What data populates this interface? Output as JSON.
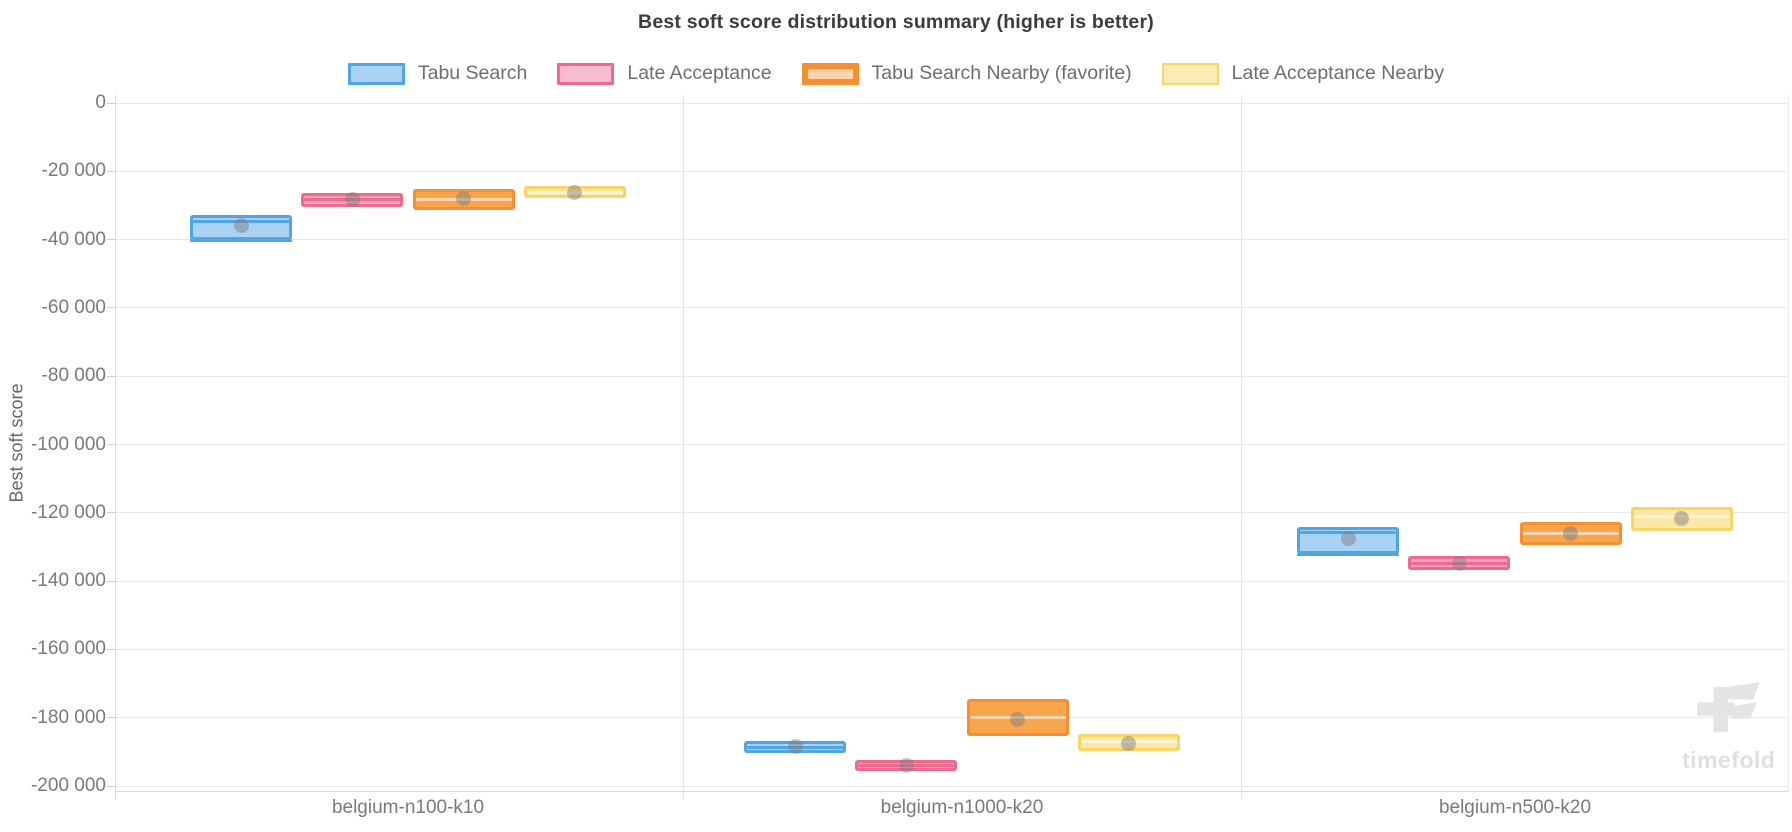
{
  "title": "Best soft score distribution summary (higher is better)",
  "y_axis": {
    "title": "Best soft score",
    "ticks": [
      {
        "label": "0",
        "value": 0
      },
      {
        "label": "-20 000",
        "value": -20000
      },
      {
        "label": "-40 000",
        "value": -40000
      },
      {
        "label": "-60 000",
        "value": -60000
      },
      {
        "label": "-80 000",
        "value": -80000
      },
      {
        "label": "-100 000",
        "value": -100000
      },
      {
        "label": "-120 000",
        "value": -120000
      },
      {
        "label": "-140 000",
        "value": -140000
      },
      {
        "label": "-160 000",
        "value": -160000
      },
      {
        "label": "-180 000",
        "value": -180000
      },
      {
        "label": "-200 000",
        "value": -200000
      }
    ]
  },
  "watermark": {
    "text": "timefold"
  },
  "chart_data": {
    "type": "boxplot",
    "title": "Best soft score distribution summary (higher is better)",
    "ylabel": "Best soft score",
    "ylim": [
      -201500,
      0
    ],
    "grid": "horizontal",
    "legend_position": "top",
    "categories": [
      "belgium-n100-k10",
      "belgium-n1000-k20",
      "belgium-n500-k20"
    ],
    "series": [
      {
        "name": "Tabu Search",
        "color": "#4fa5e8",
        "fill": "#a9d2f3",
        "legend_fill": "#a9d2f3",
        "legend_border_px": 3,
        "median_light": false,
        "boxes": [
          {
            "q3": -33800,
            "median": -34800,
            "q1": -39100,
            "mean": -36000,
            "min": -40400
          },
          {
            "q3": -187700,
            "median": -188600,
            "q1": -189500,
            "mean": -188500,
            "min": null
          },
          {
            "q3": -125000,
            "median": -125800,
            "q1": -131200,
            "mean": -127400,
            "min": -132100
          }
        ]
      },
      {
        "name": "Late Acceptance",
        "color": "#f0698f",
        "fill": "#f5a3bc",
        "legend_fill": "#f8bcce",
        "legend_border_px": 3,
        "median_light": false,
        "boxes": [
          {
            "q3": -27200,
            "median": -28400,
            "q1": -29600,
            "mean": -28400,
            "min": null
          },
          {
            "q3": -193400,
            "median": -194000,
            "q1": -194600,
            "mean": -194000,
            "min": null
          },
          {
            "q3": -133600,
            "median": -134700,
            "q1": -135800,
            "mean": -134800,
            "min": null
          }
        ]
      },
      {
        "name": "Tabu Search Nearby (favorite)",
        "color": "#f78f30",
        "fill": "#f9a54e",
        "legend_fill": "#fbd3ac",
        "legend_border_px": 6,
        "median_light": true,
        "boxes": [
          {
            "q3": -26100,
            "median": -28200,
            "q1": -30500,
            "mean": -28000,
            "min": null
          },
          {
            "q3": -175500,
            "median": -180000,
            "q1": -184600,
            "mean": -180400,
            "min": null
          },
          {
            "q3": -123600,
            "median": -126000,
            "q1": -128500,
            "mean": -126200,
            "min": null
          }
        ]
      },
      {
        "name": "Late Acceptance Nearby",
        "color": "#f8d565",
        "fill": "#fbe8a6",
        "legend_fill": "#fcebb7",
        "legend_border_px": 2,
        "median_light": true,
        "boxes": [
          {
            "q3": -25200,
            "median": -26100,
            "q1": -26900,
            "mean": -26200,
            "min": null
          },
          {
            "q3": -185600,
            "median": -187000,
            "q1": -189000,
            "mean": -187500,
            "min": null
          },
          {
            "q3": -119200,
            "median": -121000,
            "q1": -124400,
            "mean": -121600,
            "min": null
          }
        ]
      }
    ]
  }
}
